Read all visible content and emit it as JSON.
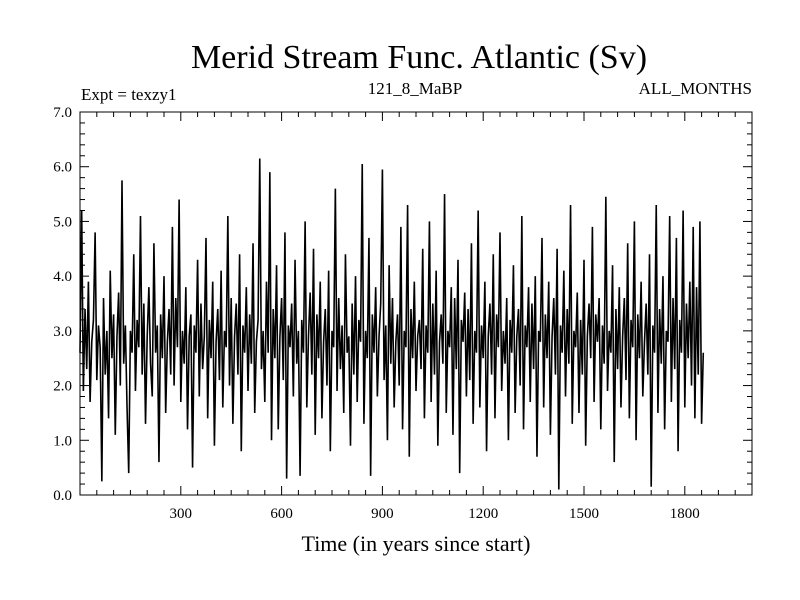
{
  "chart_data": {
    "type": "line",
    "title": "Merid Stream Func. Atlantic (Sv)",
    "subtitle_left": "Expt = texzy1",
    "subtitle_center": "121_8_MaBP",
    "subtitle_right": "ALL_MONTHS",
    "xlabel": "Time (in years since start)",
    "ylabel": "",
    "xlim": [
      0,
      2000
    ],
    "ylim": [
      0.0,
      7.0
    ],
    "x_ticks": [
      300,
      600,
      900,
      1200,
      1500,
      1800
    ],
    "x_tick_labels": [
      "300",
      "600",
      "900",
      "1200",
      "1500",
      "1800"
    ],
    "y_ticks": [
      0.0,
      1.0,
      2.0,
      3.0,
      4.0,
      5.0,
      6.0,
      7.0
    ],
    "y_tick_labels": [
      "0.0",
      "1.0",
      "2.0",
      "3.0",
      "4.0",
      "5.0",
      "6.0",
      "7.0"
    ],
    "grid": false,
    "line_color": "#000000",
    "series": [
      {
        "x_start": 0,
        "x_step": 5,
        "values": [
          2.6,
          5.2,
          1.9,
          3.4,
          2.3,
          3.9,
          1.7,
          2.8,
          3.2,
          4.8,
          2.1,
          3.1,
          2.7,
          0.25,
          3.6,
          2.2,
          3.0,
          1.4,
          4.1,
          2.5,
          3.3,
          1.1,
          2.9,
          3.7,
          2.0,
          5.75,
          2.4,
          3.1,
          1.6,
          0.4,
          3.0,
          2.6,
          4.4,
          1.9,
          3.2,
          2.7,
          5.1,
          2.2,
          3.5,
          1.3,
          2.9,
          3.8,
          2.4,
          1.8,
          4.6,
          2.6,
          3.1,
          0.6,
          3.3,
          2.5,
          4.0,
          1.5,
          2.8,
          3.4,
          2.2,
          4.9,
          2.0,
          3.6,
          2.7,
          5.4,
          1.7,
          3.0,
          2.4,
          3.8,
          1.2,
          2.9,
          3.3,
          0.5,
          3.1,
          2.6,
          4.3,
          1.8,
          3.5,
          2.3,
          2.9,
          4.7,
          1.4,
          3.2,
          2.5,
          3.9,
          0.9,
          2.8,
          3.4,
          2.1,
          4.1,
          1.6,
          3.0,
          2.7,
          5.1,
          2.0,
          3.6,
          1.3,
          2.9,
          3.5,
          2.2,
          4.4,
          0.8,
          3.1,
          2.6,
          3.8,
          1.9,
          3.3,
          2.4,
          4.6,
          1.5,
          2.8,
          3.2,
          6.15,
          2.3,
          3.0,
          1.7,
          3.9,
          2.6,
          5.9,
          1.0,
          3.4,
          2.5,
          4.2,
          1.2,
          2.9,
          3.6,
          2.1,
          4.8,
          0.3,
          3.1,
          2.7,
          3.5,
          1.8,
          4.3,
          2.4,
          3.0,
          0.35,
          3.2,
          2.6,
          5.0,
          1.6,
          2.9,
          3.7,
          2.2,
          4.5,
          1.1,
          3.3,
          2.5,
          3.9,
          1.4,
          2.8,
          3.4,
          2.0,
          4.1,
          0.8,
          3.0,
          2.7,
          5.6,
          1.9,
          3.6,
          2.3,
          3.1,
          1.5,
          4.4,
          2.6,
          2.9,
          0.9,
          3.5,
          2.2,
          4.0,
          1.7,
          3.2,
          2.8,
          6.05,
          1.3,
          3.0,
          2.5,
          4.7,
          0.35,
          3.3,
          2.6,
          3.8,
          1.8,
          2.9,
          3.5,
          5.95,
          2.1,
          3.1,
          1.0,
          4.2,
          2.4,
          3.6,
          1.6,
          2.8,
          3.3,
          2.0,
          4.9,
          1.2,
          3.0,
          2.7,
          5.3,
          0.7,
          3.4,
          2.5,
          3.9,
          1.9,
          2.9,
          3.2,
          2.3,
          4.5,
          1.4,
          3.1,
          2.6,
          5.0,
          1.7,
          3.5,
          2.2,
          4.1,
          0.9,
          2.8,
          3.3,
          2.4,
          5.5,
          1.5,
          3.0,
          2.7,
          3.8,
          1.1,
          3.6,
          2.3,
          4.3,
          0.4,
          3.2,
          2.8,
          3.7,
          1.8,
          3.4,
          2.1,
          4.6,
          1.3,
          3.0,
          2.6,
          5.2,
          1.6,
          3.1,
          2.5,
          3.9,
          0.8,
          2.9,
          3.5,
          2.2,
          4.4,
          1.4,
          3.3,
          2.7,
          4.8,
          1.9,
          3.0,
          2.4,
          3.6,
          1.0,
          3.2,
          2.6,
          4.2,
          1.5,
          2.9,
          3.4,
          2.0,
          5.1,
          1.2,
          3.1,
          2.7,
          3.8,
          1.7,
          3.5,
          2.3,
          4.0,
          0.7,
          3.0,
          2.8,
          4.7,
          1.6,
          3.3,
          2.5,
          3.9,
          1.1,
          2.9,
          3.6,
          2.2,
          4.5,
          0.1,
          3.1,
          2.6,
          4.1,
          1.8,
          3.4,
          2.4,
          5.3,
          1.3,
          3.0,
          2.7,
          3.7,
          1.5,
          3.2,
          2.2,
          4.3,
          0.9,
          2.9,
          3.5,
          2.5,
          4.9,
          1.7,
          3.3,
          2.8,
          3.6,
          1.2,
          3.1,
          2.4,
          5.45,
          1.9,
          3.0,
          2.6,
          4.2,
          0.6,
          3.4,
          2.3,
          3.8,
          1.6,
          2.9,
          3.6,
          2.1,
          4.6,
          1.4,
          3.2,
          2.7,
          5.0,
          1.0,
          3.3,
          2.5,
          3.9,
          1.8,
          2.8,
          3.5,
          2.2,
          4.4,
          0.15,
          3.1,
          2.6,
          5.3,
          1.5,
          3.4,
          2.4,
          4.0,
          1.2,
          3.0,
          2.8,
          5.1,
          1.7,
          3.6,
          2.3,
          4.7,
          0.8,
          3.2,
          2.6,
          5.2,
          1.6,
          3.5,
          2.5,
          3.9,
          2.0,
          4.9,
          1.4,
          3.8,
          2.2,
          5.0,
          1.3,
          2.6
        ]
      }
    ]
  }
}
